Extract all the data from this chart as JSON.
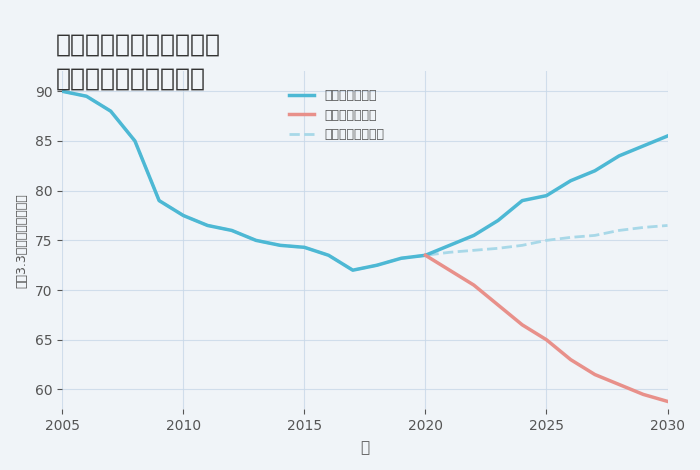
{
  "title": "奈良県奈良市東向南町の\n中古戸建ての価格推移",
  "xlabel": "年",
  "ylabel": "坪（3.3㎡）単価（万円）",
  "background_color": "#f0f4f8",
  "plot_bg_color": "#f0f4f8",
  "xlim": [
    2005,
    2030
  ],
  "ylim": [
    58,
    92
  ],
  "yticks": [
    60,
    65,
    70,
    75,
    80,
    85,
    90
  ],
  "xticks": [
    2005,
    2010,
    2015,
    2020,
    2025,
    2030
  ],
  "good_scenario": {
    "label": "グッドシナリオ",
    "color": "#4db8d4",
    "x": [
      2005,
      2006,
      2007,
      2008,
      2009,
      2010,
      2011,
      2012,
      2013,
      2014,
      2015,
      2016,
      2017,
      2018,
      2019,
      2020,
      2021,
      2022,
      2023,
      2024,
      2025,
      2026,
      2027,
      2028,
      2029,
      2030
    ],
    "y": [
      90.0,
      89.5,
      88.0,
      85.0,
      79.0,
      77.5,
      76.5,
      76.0,
      75.0,
      74.5,
      74.3,
      73.5,
      72.0,
      72.5,
      73.2,
      73.5,
      74.5,
      75.5,
      77.0,
      79.0,
      79.5,
      81.0,
      82.0,
      83.5,
      84.5,
      85.5
    ]
  },
  "bad_scenario": {
    "label": "バッドシナリオ",
    "color": "#e8908a",
    "x": [
      2020,
      2021,
      2022,
      2023,
      2024,
      2025,
      2026,
      2027,
      2028,
      2029,
      2030
    ],
    "y": [
      73.5,
      72.0,
      70.5,
      68.5,
      66.5,
      65.0,
      63.0,
      61.5,
      60.5,
      59.5,
      58.8
    ]
  },
  "normal_scenario": {
    "label": "ノーマルシナリオ",
    "color": "#a8d8e8",
    "x": [
      2005,
      2006,
      2007,
      2008,
      2009,
      2010,
      2011,
      2012,
      2013,
      2014,
      2015,
      2016,
      2017,
      2018,
      2019,
      2020,
      2021,
      2022,
      2023,
      2024,
      2025,
      2026,
      2027,
      2028,
      2029,
      2030
    ],
    "y": [
      90.0,
      89.5,
      88.0,
      85.0,
      79.0,
      77.5,
      76.5,
      76.0,
      75.0,
      74.5,
      74.3,
      73.5,
      72.0,
      72.5,
      73.2,
      73.5,
      73.8,
      74.0,
      74.2,
      74.5,
      75.0,
      75.3,
      75.5,
      76.0,
      76.3,
      76.5
    ]
  }
}
